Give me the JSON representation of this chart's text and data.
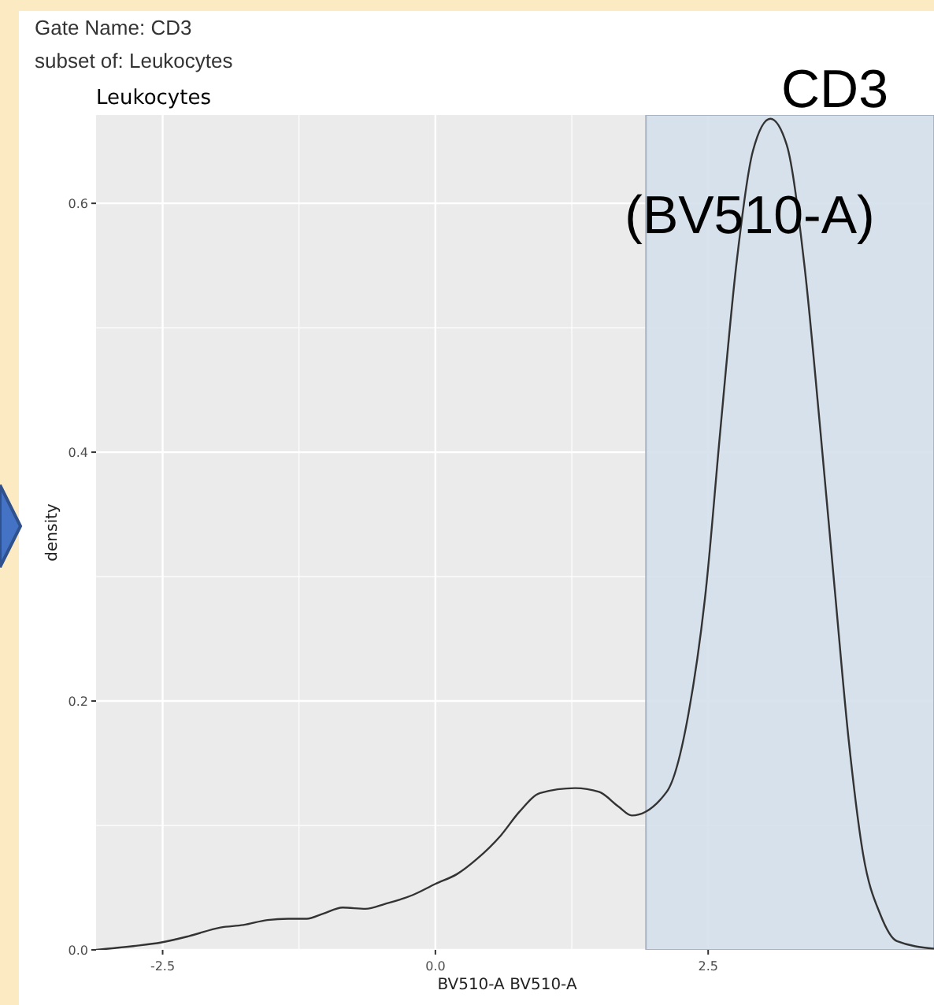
{
  "chart_data": {
    "type": "line",
    "title": "Gate Name: CD3",
    "subtitle": "subset of: Leukocytes",
    "xlabel": "BV510-A BV510-A",
    "ylabel": "density",
    "annotations": [
      "Leukocytes",
      "CD3",
      "(BV510-A)"
    ],
    "x": [
      -3.11,
      -2.77,
      -2.51,
      -2.26,
      -1.97,
      -1.76,
      -1.54,
      -1.35,
      -1.18,
      -1.03,
      -0.85,
      -0.64,
      -0.46,
      -0.21,
      0,
      0.2,
      0.38,
      0.6,
      0.77,
      0.96,
      1.28,
      1.5,
      1.68,
      1.8,
      2.12,
      2.32,
      2.48,
      2.61,
      2.76,
      2.91,
      3.07,
      3.22,
      3.38,
      3.53,
      3.66,
      3.79,
      3.92,
      4.08,
      4.23,
      4.57
    ],
    "values": [
      0,
      0.003,
      0.006,
      0.011,
      0.018,
      0.02,
      0.024,
      0.025,
      0.025,
      0.029,
      0.034,
      0.033,
      0.037,
      0.044,
      0.053,
      0.061,
      0.073,
      0.092,
      0.111,
      0.126,
      0.13,
      0.127,
      0.115,
      0.108,
      0.127,
      0.19,
      0.29,
      0.416,
      0.552,
      0.642,
      0.668,
      0.647,
      0.552,
      0.416,
      0.29,
      0.167,
      0.077,
      0.028,
      0.007,
      0.001
    ],
    "color": "#333333",
    "xlim": [
      -3.11,
      4.57
    ],
    "ylim": [
      0,
      0.671
    ],
    "xticks": [
      {
        "value": -2.5,
        "label": "-2.5"
      },
      {
        "value": 0,
        "label": "0.0"
      },
      {
        "value": 2.5,
        "label": "2.5"
      }
    ],
    "yticks": [
      {
        "value": 0,
        "label": "0.0"
      },
      {
        "value": 0.2,
        "label": "0.2"
      },
      {
        "value": 0.4,
        "label": "0.4"
      },
      {
        "value": 0.6,
        "label": "0.6"
      }
    ],
    "bands": [
      {
        "axis": "x",
        "from": 1.93,
        "to": 4.57,
        "color": "#d4e0ec"
      }
    ],
    "grid": true,
    "marker": "none",
    "line_style": "solid"
  }
}
